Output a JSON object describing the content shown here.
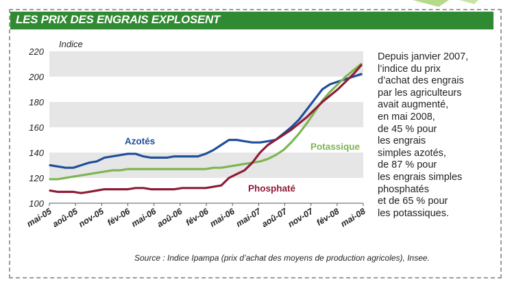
{
  "header": {
    "title": "LES PRIX DES ENGRAIS EXPLOSENT"
  },
  "side_text": [
    "Depuis janvier 2007,",
    "l’indice du prix",
    "d’achat des engrais",
    "par les agriculteurs",
    "avait augmenté,",
    "en mai 2008,",
    "de 45 % pour",
    "les engrais",
    "simples azotés,",
    "de 87 % pour",
    "les engrais simples",
    "phosphatés",
    "et de 65 % pour",
    "les potassiques."
  ],
  "source": "Source : Indice Ipampa (prix d’achat des moyens de production agricoles), Insee.",
  "colors": {
    "header_bg": "#2f8a32",
    "band": "#e6e6e6",
    "azotes": "#1f4e9a",
    "potassique": "#7db552",
    "phosphate": "#8e1c36"
  },
  "chart_data": {
    "type": "line",
    "ylabel": "Indice",
    "ylim": [
      100,
      220
    ],
    "yticks": [
      100,
      120,
      140,
      160,
      180,
      200,
      220
    ],
    "xticks": [
      "mai-05",
      "aoû-05",
      "nov-05",
      "fév-06",
      "mai-06",
      "aoû-06",
      "fév-06",
      "mai-06",
      "mai-07",
      "aoû-07",
      "nov-07",
      "fév-08",
      "mai-08"
    ],
    "series": [
      {
        "name": "Azotés",
        "color": "#1f4e9a",
        "values": [
          130,
          129,
          128,
          128,
          130,
          132,
          133,
          136,
          137,
          138,
          139,
          139,
          137,
          136,
          136,
          136,
          137,
          137,
          137,
          137,
          139,
          142,
          146,
          150,
          150,
          149,
          148,
          148,
          149,
          150,
          155,
          160,
          166,
          174,
          182,
          190,
          194,
          196,
          198,
          200,
          202
        ]
      },
      {
        "name": "Potassique",
        "color": "#7db552",
        "values": [
          119,
          119,
          120,
          121,
          122,
          123,
          124,
          125,
          126,
          126,
          127,
          127,
          127,
          127,
          127,
          127,
          127,
          127,
          127,
          127,
          127,
          128,
          128,
          129,
          130,
          131,
          132,
          133,
          135,
          138,
          142,
          148,
          155,
          163,
          172,
          181,
          188,
          194,
          200,
          205,
          210
        ]
      },
      {
        "name": "Phosphaté",
        "color": "#8e1c36",
        "values": [
          110,
          109,
          109,
          109,
          108,
          109,
          110,
          111,
          111,
          111,
          111,
          112,
          112,
          111,
          111,
          111,
          111,
          112,
          112,
          112,
          112,
          113,
          114,
          120,
          123,
          126,
          132,
          140,
          146,
          150,
          154,
          158,
          163,
          168,
          174,
          180,
          185,
          190,
          196,
          202,
          209
        ]
      }
    ]
  }
}
